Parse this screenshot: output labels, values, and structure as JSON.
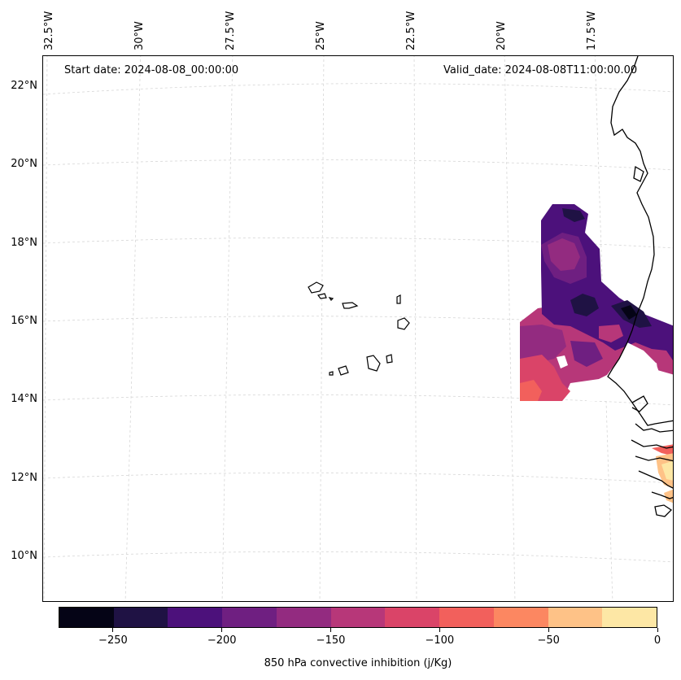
{
  "header": {
    "start_date": "Start date: 2024-08-08_00:00:00",
    "valid_date": "Valid_date: 2024-08-08T11:00:00.00"
  },
  "map": {
    "lon_labels": [
      "32.5°W",
      "30°W",
      "27.5°W",
      "25°W",
      "22.5°W",
      "20°W",
      "17.5°W"
    ],
    "lat_labels": [
      "22°N",
      "20°N",
      "18°N",
      "16°N",
      "14°N",
      "12°N",
      "10°N"
    ],
    "gridlines": "dashed light gray",
    "field_name": "850 hPa convective inhibition"
  },
  "colorbar": {
    "label": "850 hPa convective inhibition (j/Kg)",
    "tick_labels": [
      "−250",
      "−200",
      "−150",
      "−100",
      "−50",
      "0"
    ],
    "range": [
      -275,
      0
    ],
    "step": 25,
    "colors": [
      "#050416",
      "#1f1244",
      "#4c117b",
      "#6f1f81",
      "#932b80",
      "#b73779",
      "#da4468",
      "#f2605c",
      "#fc8761",
      "#fec287",
      "#fde7a5"
    ]
  }
}
